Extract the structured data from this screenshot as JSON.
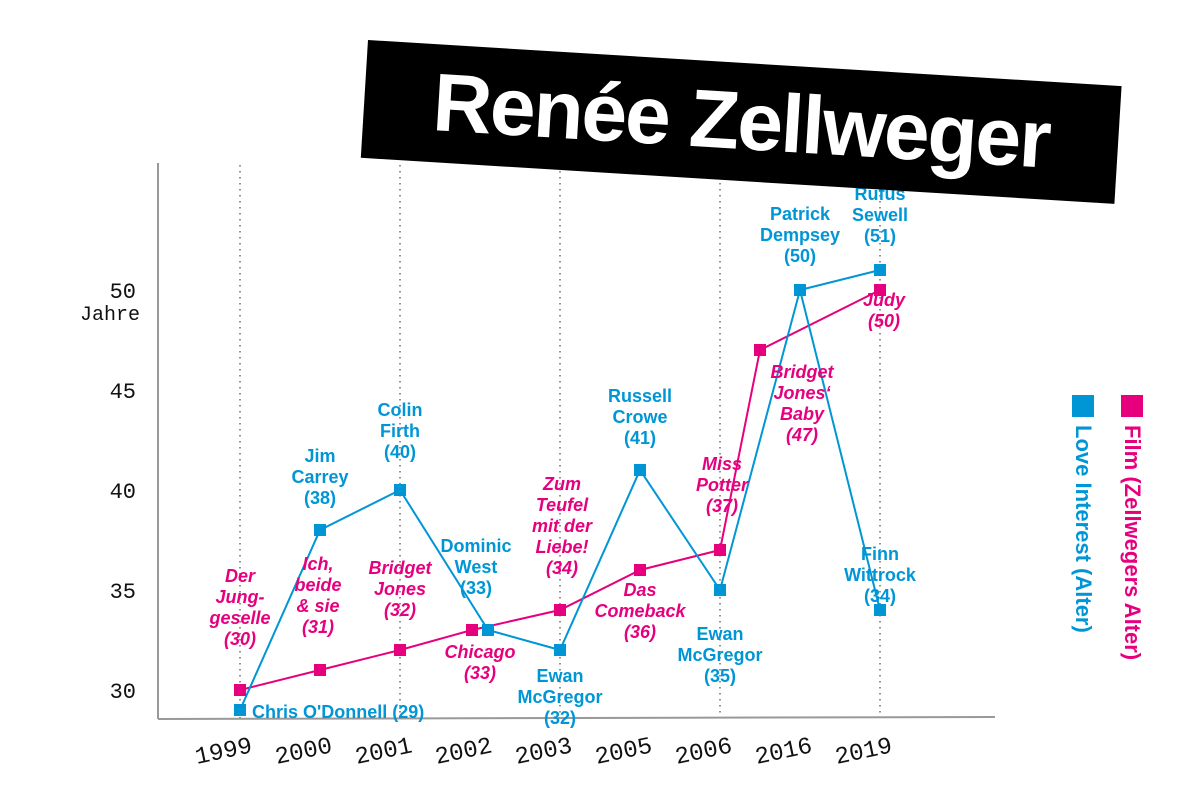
{
  "title": "Renée Zellweger",
  "legend": {
    "film_label": "Film (Zellwegers Alter)",
    "love_label": "Love Interest (Alter)"
  },
  "colors": {
    "film": "#e6007e",
    "love": "#0096d6"
  },
  "chart_data": {
    "type": "line",
    "title": "Renée Zellweger",
    "ylabel": "Jahre",
    "ylim": [
      29,
      55
    ],
    "yticks": [
      30,
      35,
      40,
      45,
      50
    ],
    "categories": [
      "1999",
      "2000",
      "2001",
      "2002",
      "2003",
      "2005",
      "2006",
      "2016",
      "2019"
    ],
    "series": [
      {
        "name": "Film (Zellwegers Alter)",
        "points": [
          {
            "x": 0,
            "y": 30,
            "label": "Der\nJung-\ngeselle\n(30)"
          },
          {
            "x": 1,
            "y": 31,
            "label": "Ich,\nbeide\n& sie\n(31)"
          },
          {
            "x": 2,
            "y": 32,
            "label": "Bridget\nJones\n(32)"
          },
          {
            "x": 2.9,
            "y": 33,
            "label": "Chicago\n(33)"
          },
          {
            "x": 4,
            "y": 34,
            "label": "Zum\nTeufel\nmit der\nLiebe!\n(34)"
          },
          {
            "x": 5,
            "y": 36,
            "label": "Das\nComeback\n(36)"
          },
          {
            "x": 6,
            "y": 37,
            "label": "Miss\nPotter\n(37)"
          },
          {
            "x": 6.5,
            "y": 47,
            "label": "Bridget\nJones‘\nBaby\n(47)"
          },
          {
            "x": 8,
            "y": 50,
            "label": "Judy\n(50)"
          }
        ]
      },
      {
        "name": "Love Interest (Alter)",
        "points": [
          {
            "x": 0,
            "y": 29,
            "label": "Chris O'Donnell (29)"
          },
          {
            "x": 1,
            "y": 38,
            "label": "Jim\nCarrey\n(38)"
          },
          {
            "x": 2,
            "y": 40,
            "label": "Colin\nFirth\n(40)"
          },
          {
            "x": 3.1,
            "y": 33,
            "label": "Dominic\nWest\n(33)"
          },
          {
            "x": 4,
            "y": 32,
            "label": "Ewan\nMcGregor\n(32)"
          },
          {
            "x": 5,
            "y": 41,
            "label": "Russell\nCrowe\n(41)"
          },
          {
            "x": 6,
            "y": 35,
            "label": "Ewan\nMcGregor\n(35)"
          },
          {
            "x": 7,
            "y": 50,
            "label": "Patrick\nDempsey\n(50)"
          },
          {
            "x": 8,
            "y": 34,
            "label": "Finn\nWittrock\n(34)"
          },
          {
            "x": 8,
            "y": 51,
            "label": "Rufus\nSewell\n(51)"
          }
        ]
      }
    ],
    "grid": "vertical dotted lines at 1999, 2001, 2003, 2006, 2019",
    "legend_position": "right, rotated vertical"
  }
}
